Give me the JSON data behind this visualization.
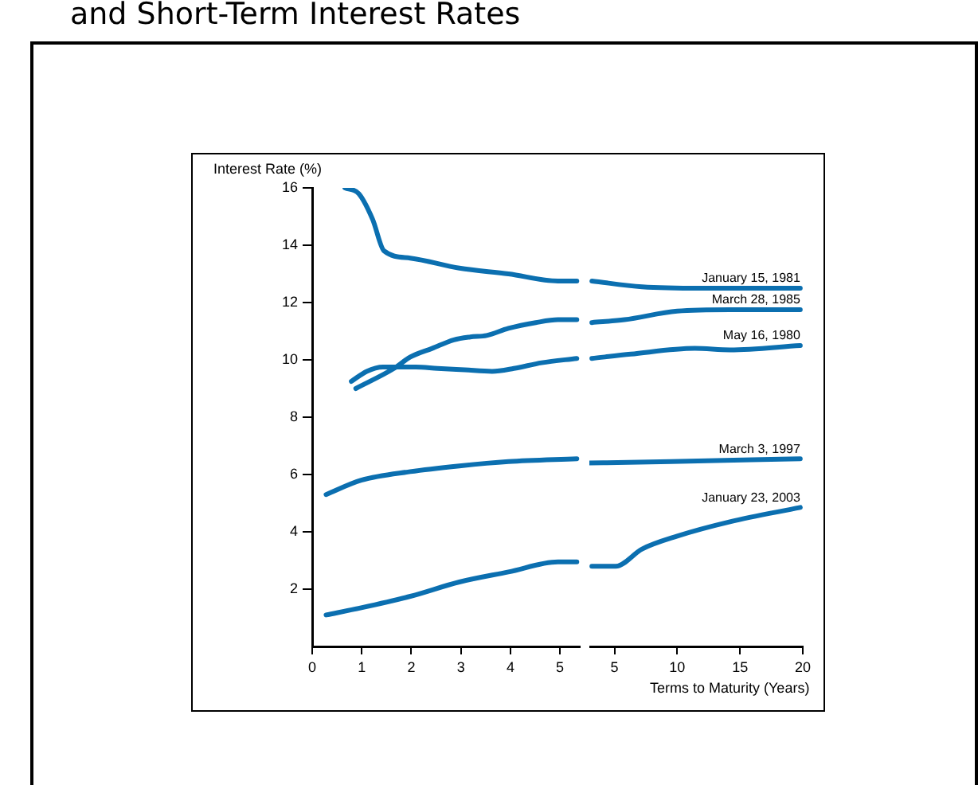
{
  "chart_data": [
    {
      "type": "line",
      "title": "and Short-Term Interest Rates",
      "ylabel": "Interest Rate (%)",
      "xlim": [
        0,
        5.4
      ],
      "xticks": [
        0,
        1,
        2,
        3,
        4,
        5
      ],
      "ylim": [
        0,
        16
      ],
      "yticks": [
        2,
        4,
        6,
        8,
        10,
        12,
        14,
        16
      ],
      "grid": false,
      "legend": false,
      "series": [
        {
          "color": "#0b6fb0",
          "x": [
            0.66,
            0.94,
            1.22,
            1.45,
            1.98,
            2.97,
            3.96,
            4.96,
            5.34
          ],
          "values": [
            16.0,
            15.8,
            14.9,
            13.8,
            13.55,
            13.2,
            13.0,
            12.75,
            12.75
          ]
        },
        {
          "color": "#0b6fb0",
          "x": [
            0.88,
            1.65,
            1.98,
            2.42,
            2.86,
            3.19,
            3.52,
            3.96,
            4.51,
            4.96,
            5.34
          ],
          "values": [
            9.0,
            9.7,
            10.1,
            10.4,
            10.7,
            10.8,
            10.85,
            11.1,
            11.3,
            11.4,
            11.4
          ]
        },
        {
          "color": "#0b6fb0",
          "x": [
            0.79,
            1.1,
            1.43,
            2.09,
            2.53,
            3.08,
            3.63,
            4.07,
            4.63,
            5.34
          ],
          "values": [
            9.25,
            9.6,
            9.75,
            9.75,
            9.7,
            9.65,
            9.6,
            9.7,
            9.9,
            10.05
          ]
        },
        {
          "color": "#0b6fb0",
          "x": [
            0.28,
            0.99,
            1.98,
            2.97,
            3.96,
            5.34
          ],
          "values": [
            5.3,
            5.8,
            6.1,
            6.3,
            6.45,
            6.55
          ]
        },
        {
          "color": "#0b6fb0",
          "x": [
            0.28,
            0.99,
            1.98,
            2.97,
            3.96,
            4.96,
            5.34
          ],
          "values": [
            1.1,
            1.35,
            1.75,
            2.25,
            2.6,
            2.95,
            2.95
          ]
        }
      ]
    },
    {
      "type": "line",
      "xlabel": "Terms to Maturity (Years)",
      "xlim": [
        3,
        20
      ],
      "xticks": [
        5,
        10,
        15,
        20
      ],
      "ylim": [
        0,
        16
      ],
      "yticks": [
        2,
        4,
        6,
        8,
        10,
        12,
        14,
        16
      ],
      "tick_labels": "x",
      "grid": false,
      "legend": false,
      "series": [
        {
          "name": "January 15, 1981",
          "color": "#0b6fb0",
          "x": [
            3.2,
            7.2,
            11.9,
            19.8
          ],
          "values": [
            12.75,
            12.55,
            12.5,
            12.5
          ]
        },
        {
          "name": "March 28, 1985",
          "color": "#0b6fb0",
          "x": [
            3.2,
            5.8,
            10.0,
            14.2,
            19.8
          ],
          "values": [
            11.3,
            11.4,
            11.7,
            11.75,
            11.75
          ]
        },
        {
          "name": "May 16, 1980",
          "color": "#0b6fb0",
          "x": [
            3.2,
            6.3,
            11.4,
            14.2,
            19.8
          ],
          "values": [
            10.05,
            10.2,
            10.4,
            10.35,
            10.5
          ]
        },
        {
          "name": "March 3, 1997",
          "color": "#0b6fb0",
          "x": [
            3.0,
            9.5,
            19.8
          ],
          "values": [
            6.4,
            6.45,
            6.55
          ]
        },
        {
          "name": "January 23, 2003",
          "color": "#0b6fb0",
          "x": [
            3.2,
            5.1,
            7.2,
            10.0,
            14.2,
            19.8
          ],
          "values": [
            2.8,
            2.8,
            3.4,
            3.85,
            4.35,
            4.85
          ]
        }
      ]
    }
  ]
}
